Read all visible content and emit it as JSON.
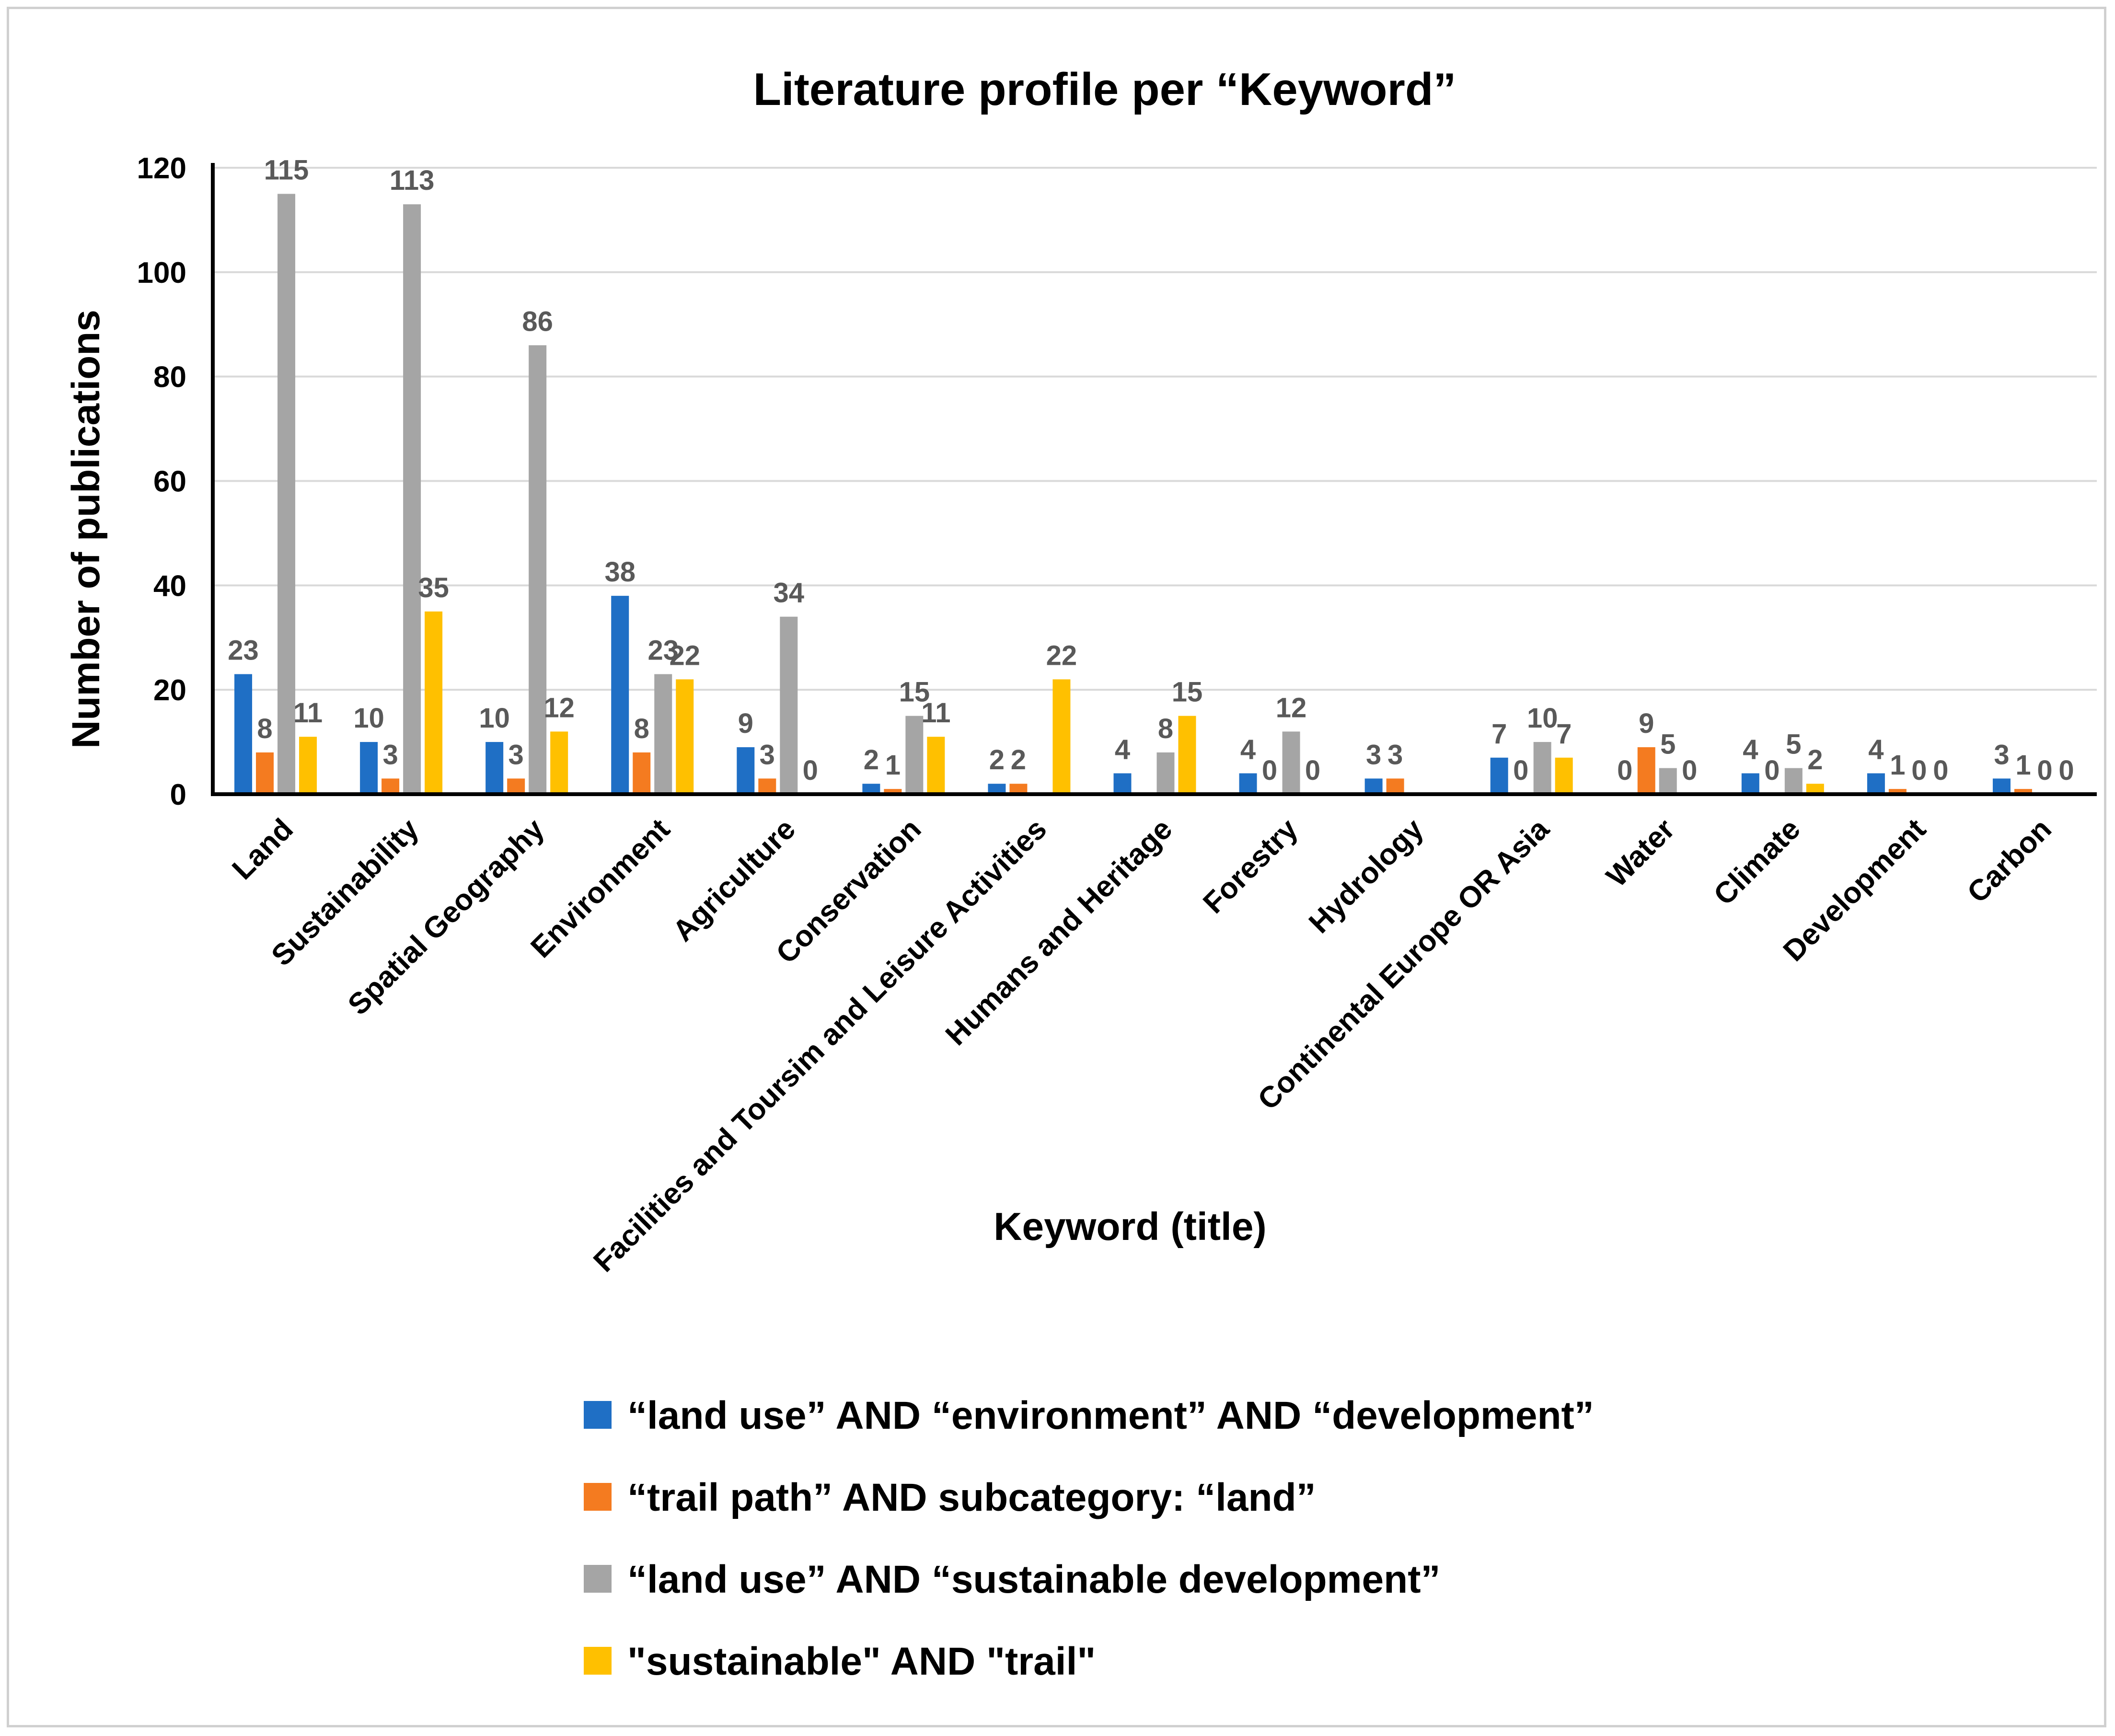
{
  "chart_data": {
    "type": "bar",
    "title": "Literature profile per “Keyword”",
    "xlabel": "Keyword (title)",
    "ylabel": "Number of publications",
    "ylim": [
      0,
      120
    ],
    "yticks": [
      "0",
      "20",
      "40",
      "60",
      "80",
      "100",
      "120"
    ],
    "grid": true,
    "legend_position": "bottom",
    "categories": [
      "Land",
      "Sustainability",
      "Spatial Geography",
      "Environment",
      "Agriculture",
      "Conservation",
      "Facilities and Toursim and Leisure Activities",
      "Humans and Heritage",
      "Forestry",
      "Hydrology",
      "Continental Europe OR Asia",
      "Water",
      "Climate",
      "Development",
      "Carbon"
    ],
    "series": [
      {
        "name": "“land use” AND “environment” AND “development”",
        "color": "#1f6fc5",
        "values": [
          23,
          10,
          10,
          38,
          9,
          2,
          2,
          4,
          4,
          3,
          7,
          0,
          4,
          4,
          3
        ],
        "labels": [
          "23",
          "10",
          "10",
          "38",
          "9",
          "2",
          "2",
          "4",
          "4",
          "3",
          "7",
          "0",
          "4",
          "4",
          "3"
        ]
      },
      {
        "name": "“trail path” AND subcategory: “land”",
        "color": "#f47b20",
        "values": [
          8,
          3,
          3,
          8,
          3,
          1,
          2,
          0,
          0,
          3,
          0,
          9,
          0,
          1,
          1
        ],
        "labels": [
          "8",
          "3",
          "3",
          "8",
          "3",
          "1",
          "2",
          "",
          "0",
          "3",
          "0",
          "9",
          "0",
          "1",
          "1"
        ]
      },
      {
        "name": "“land use” AND “sustainable development”",
        "color": "#a5a5a5",
        "values": [
          115,
          113,
          86,
          23,
          34,
          15,
          0,
          8,
          12,
          0,
          10,
          5,
          5,
          0,
          0
        ],
        "labels": [
          "115",
          "113",
          "86",
          "23",
          "34",
          "15",
          "",
          "8",
          "12",
          "",
          "10",
          "5",
          "5",
          "0",
          "0"
        ]
      },
      {
        "name": "\"sustainable\" AND \"trail\"",
        "color": "#ffc000",
        "values": [
          11,
          35,
          12,
          22,
          0,
          11,
          22,
          15,
          0,
          0,
          7,
          0,
          2,
          0,
          0
        ],
        "labels": [
          "11",
          "35",
          "12",
          "22",
          "0",
          "11",
          "22",
          "15",
          "0",
          "",
          "7",
          "0",
          "2",
          "0",
          "0"
        ]
      }
    ]
  }
}
